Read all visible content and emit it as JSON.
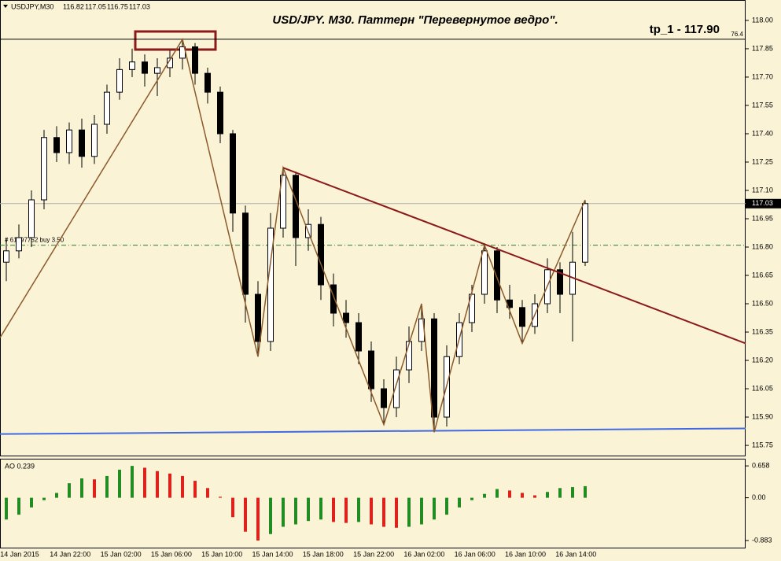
{
  "chart_data": [
    {
      "type": "candlestick",
      "symbol": "USDJPY,M30",
      "header_ohlc": [
        116.82,
        117.05,
        116.75,
        117.03
      ],
      "title": "USD/JPY. M30. Паттерн \"Перевернутое ведро\".",
      "target_text": "tp_1 - 117.90",
      "target_level": 117.9,
      "target_label": "76.4",
      "order_level": 116.81,
      "order_text": "# 61097752 buy 3.50",
      "current_price": 117.03,
      "ylim": [
        115.692,
        118.108
      ],
      "yticks": [
        {
          "value": 118,
          "label": "118.00"
        },
        117.85,
        {
          "value": 117.7,
          "label": "117.70"
        },
        117.55,
        {
          "value": 117.4,
          "label": "117.40"
        },
        117.25,
        {
          "value": 117.1,
          "label": "117.10"
        },
        116.95,
        {
          "value": 116.8,
          "label": "116.80"
        },
        116.65,
        {
          "value": 116.5,
          "label": "116.50"
        },
        116.35,
        {
          "value": 116.2,
          "label": "116.20"
        },
        116.05,
        {
          "value": 115.9,
          "label": "115.90"
        },
        115.75
      ],
      "time_labels": [
        "14 Jan 2015",
        "14 Jan 22:00",
        "15 Jan 02:00",
        "15 Jan 06:00",
        "15 Jan 10:00",
        "15 Jan 14:00",
        "15 Jan 18:00",
        "15 Jan 22:00",
        "16 Jan 02:00",
        "16 Jan 06:00",
        "16 Jan 10:00",
        "16 Jan 14:00"
      ],
      "open": [
        116.72,
        116.78,
        116.85,
        117.05,
        117.38,
        117.3,
        117.42,
        117.28,
        117.45,
        117.62,
        117.74,
        117.78,
        117.72,
        117.75,
        117.8,
        117.86,
        117.72,
        117.62,
        117.4,
        116.98,
        116.55,
        116.3,
        116.9,
        117.18,
        116.85,
        116.92,
        116.6,
        116.45,
        116.4,
        116.25,
        116.05,
        115.95,
        116.15,
        116.3,
        116.42,
        115.9,
        116.22,
        116.4,
        116.55,
        116.78,
        116.52,
        116.48,
        116.38,
        116.5,
        116.68,
        116.55,
        116.72
      ],
      "high": [
        116.85,
        116.92,
        117.1,
        117.42,
        117.44,
        117.46,
        117.48,
        117.5,
        117.66,
        117.8,
        117.85,
        117.82,
        117.8,
        117.84,
        117.9,
        117.88,
        117.75,
        117.65,
        117.42,
        117.02,
        116.62,
        116.98,
        117.22,
        117.2,
        117.0,
        116.96,
        116.66,
        116.52,
        116.45,
        116.3,
        116.1,
        116.22,
        116.38,
        116.5,
        116.45,
        116.28,
        116.45,
        116.6,
        116.82,
        116.8,
        116.6,
        116.52,
        116.55,
        116.74,
        116.72,
        116.88,
        117.05
      ],
      "low": [
        116.62,
        116.74,
        116.8,
        117.0,
        117.25,
        117.24,
        117.22,
        117.24,
        117.4,
        117.58,
        117.7,
        117.65,
        117.6,
        117.7,
        117.74,
        117.66,
        117.56,
        117.35,
        116.88,
        116.4,
        116.22,
        116.25,
        116.85,
        116.7,
        116.78,
        116.52,
        116.38,
        116.32,
        116.18,
        115.98,
        115.86,
        115.9,
        116.08,
        116.25,
        115.82,
        115.85,
        116.18,
        116.35,
        116.5,
        116.45,
        116.42,
        116.29,
        116.34,
        116.45,
        116.45,
        116.3,
        116.7
      ],
      "close": [
        116.78,
        116.85,
        117.05,
        117.38,
        117.3,
        117.42,
        117.28,
        117.45,
        117.62,
        117.74,
        117.78,
        117.72,
        117.75,
        117.8,
        117.86,
        117.72,
        117.62,
        117.4,
        116.98,
        116.55,
        116.3,
        116.9,
        117.18,
        116.85,
        116.92,
        116.6,
        116.45,
        116.4,
        116.25,
        116.05,
        115.95,
        116.15,
        116.3,
        116.42,
        115.9,
        116.22,
        116.4,
        116.55,
        116.78,
        116.52,
        116.48,
        116.38,
        116.5,
        116.68,
        116.55,
        116.72,
        117.03
      ],
      "zigzag": {
        "x": [
          -0.5,
          14,
          20,
          22,
          30,
          33,
          34,
          38,
          41,
          46
        ],
        "values": [
          116.32,
          117.9,
          116.22,
          117.22,
          115.86,
          116.5,
          115.82,
          116.81,
          116.29,
          117.05
        ],
        "color": "#8b5a2b"
      },
      "trendline": {
        "x": [
          22,
          58.75
        ],
        "values": [
          117.22,
          116.29
        ],
        "color": "#8b1a1a"
      },
      "support_line": {
        "x": [
          -0.5,
          58.75
        ],
        "values": [
          115.81,
          115.84
        ],
        "color": "#4169e1"
      },
      "up_color": "#ffffff",
      "down_color": "#000000"
    },
    {
      "type": "bar",
      "label": "AO 0.239",
      "values": [
        -0.45,
        -0.35,
        -0.2,
        -0.05,
        0.1,
        0.3,
        0.4,
        0.38,
        0.45,
        0.58,
        0.658,
        0.62,
        0.55,
        0.5,
        0.45,
        0.35,
        0.2,
        0.02,
        -0.4,
        -0.7,
        -0.883,
        -0.75,
        -0.6,
        -0.55,
        -0.48,
        -0.45,
        -0.5,
        -0.52,
        -0.5,
        -0.55,
        -0.6,
        -0.62,
        -0.6,
        -0.55,
        -0.45,
        -0.35,
        -0.2,
        -0.05,
        0.08,
        0.18,
        0.15,
        0.1,
        0.05,
        0.12,
        0.2,
        0.22,
        0.239
      ],
      "ylim": [
        -1.03,
        0.79
      ],
      "yticks": [
        0.658,
        {
          "value": 0,
          "label": "0.00"
        },
        -0.883
      ],
      "up_color": "#228b22",
      "down_color": "#e0201b"
    }
  ]
}
